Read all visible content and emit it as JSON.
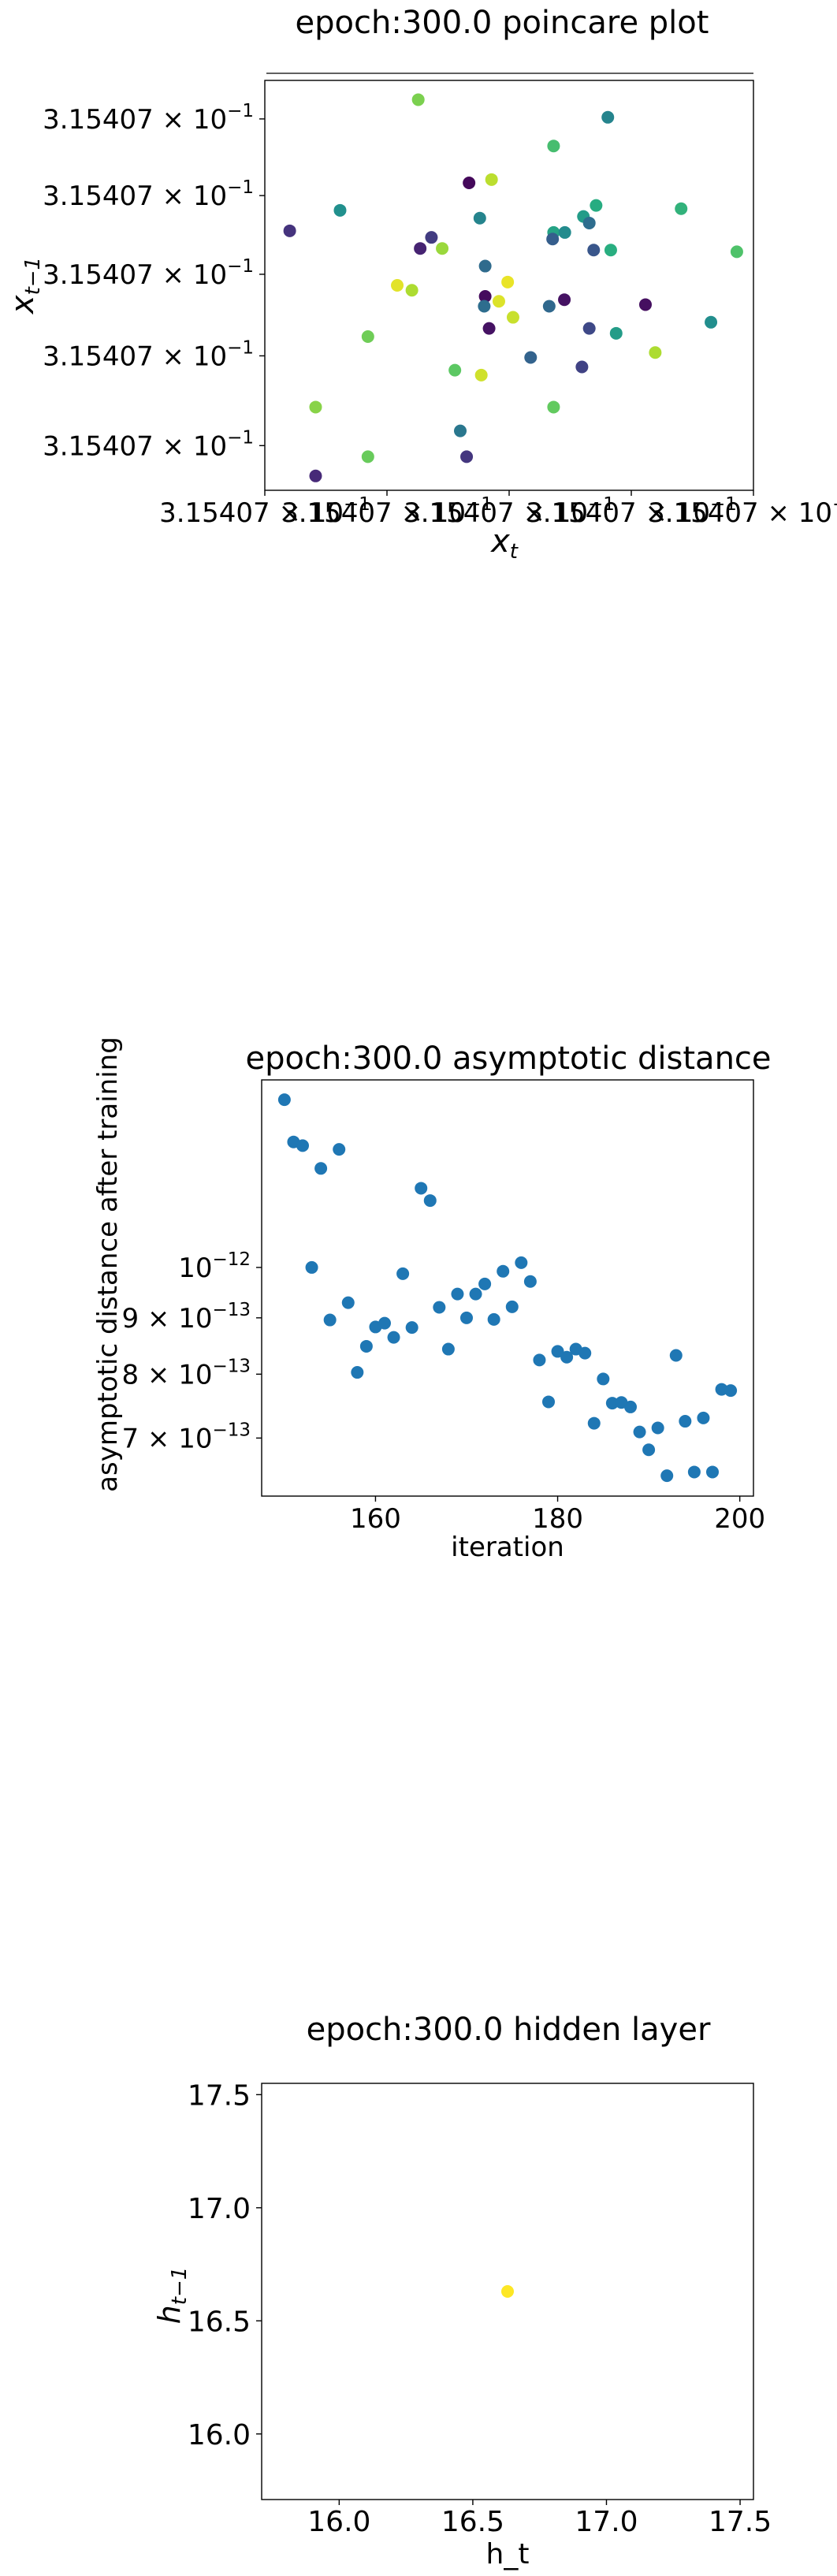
{
  "chart_data": [
    {
      "type": "scatter",
      "title": "epoch:300.0 poincare plot",
      "xlabel": "x",
      "xlabel_sub": "t",
      "ylabel": "x",
      "ylabel_sub": "t−1",
      "colormap": "viridis",
      "xlim": [
        0,
        1
      ],
      "ylim": [
        0,
        1
      ],
      "x_ticks": [
        {
          "label": "3.15407 × 10",
          "exp": "−1",
          "at": 0.0
        },
        {
          "label": "3.15407 × 10",
          "exp": "−1",
          "at": 0.25
        },
        {
          "label": "3.15407 × 10",
          "exp": "−1",
          "at": 0.5
        },
        {
          "label": "3.15407 × 10",
          "exp": "−1",
          "at": 0.75
        },
        {
          "label": "3.15407 × 10",
          "exp": "−1",
          "at": 1.0
        }
      ],
      "y_ticks": [
        {
          "label": "3.15407 × 10",
          "exp": "−1",
          "at": 0.109
        },
        {
          "label": "3.15407 × 10",
          "exp": "−1",
          "at": 0.328
        },
        {
          "label": "3.15407 × 10",
          "exp": "−1",
          "at": 0.527
        },
        {
          "label": "3.15407 × 10",
          "exp": "−1",
          "at": 0.719
        },
        {
          "label": "3.15407 × 10",
          "exp": "−1",
          "at": 0.906
        }
      ],
      "points": [
        {
          "x": 0.314,
          "y": 0.953,
          "c": 0.8
        },
        {
          "x": 0.702,
          "y": 0.91,
          "c": 0.45
        },
        {
          "x": 0.591,
          "y": 0.84,
          "c": 0.7
        },
        {
          "x": 0.464,
          "y": 0.758,
          "c": 0.9
        },
        {
          "x": 0.418,
          "y": 0.75,
          "c": 0.02
        },
        {
          "x": 0.852,
          "y": 0.687,
          "c": 0.65
        },
        {
          "x": 0.154,
          "y": 0.683,
          "c": 0.5
        },
        {
          "x": 0.678,
          "y": 0.695,
          "c": 0.62
        },
        {
          "x": 0.44,
          "y": 0.664,
          "c": 0.45
        },
        {
          "x": 0.652,
          "y": 0.668,
          "c": 0.55
        },
        {
          "x": 0.051,
          "y": 0.633,
          "c": 0.15
        },
        {
          "x": 0.591,
          "y": 0.629,
          "c": 0.58
        },
        {
          "x": 0.614,
          "y": 0.629,
          "c": 0.48
        },
        {
          "x": 0.664,
          "y": 0.652,
          "c": 0.36
        },
        {
          "x": 0.341,
          "y": 0.617,
          "c": 0.18
        },
        {
          "x": 0.318,
          "y": 0.59,
          "c": 0.1
        },
        {
          "x": 0.363,
          "y": 0.59,
          "c": 0.85
        },
        {
          "x": 0.589,
          "y": 0.613,
          "c": 0.3
        },
        {
          "x": 0.673,
          "y": 0.586,
          "c": 0.27
        },
        {
          "x": 0.708,
          "y": 0.586,
          "c": 0.63
        },
        {
          "x": 0.966,
          "y": 0.582,
          "c": 0.72
        },
        {
          "x": 0.451,
          "y": 0.547,
          "c": 0.35
        },
        {
          "x": 0.497,
          "y": 0.508,
          "c": 0.97
        },
        {
          "x": 0.271,
          "y": 0.5,
          "c": 0.96
        },
        {
          "x": 0.301,
          "y": 0.488,
          "c": 0.88
        },
        {
          "x": 0.451,
          "y": 0.473,
          "c": 0.03
        },
        {
          "x": 0.479,
          "y": 0.461,
          "c": 0.95
        },
        {
          "x": 0.613,
          "y": 0.465,
          "c": 0.05
        },
        {
          "x": 0.779,
          "y": 0.453,
          "c": 0.04
        },
        {
          "x": 0.449,
          "y": 0.449,
          "c": 0.36
        },
        {
          "x": 0.582,
          "y": 0.449,
          "c": 0.34
        },
        {
          "x": 0.508,
          "y": 0.422,
          "c": 0.92
        },
        {
          "x": 0.459,
          "y": 0.395,
          "c": 0.05
        },
        {
          "x": 0.664,
          "y": 0.395,
          "c": 0.22
        },
        {
          "x": 0.913,
          "y": 0.41,
          "c": 0.49
        },
        {
          "x": 0.211,
          "y": 0.375,
          "c": 0.78
        },
        {
          "x": 0.719,
          "y": 0.383,
          "c": 0.55
        },
        {
          "x": 0.799,
          "y": 0.336,
          "c": 0.88
        },
        {
          "x": 0.544,
          "y": 0.324,
          "c": 0.32
        },
        {
          "x": 0.649,
          "y": 0.301,
          "c": 0.2
        },
        {
          "x": 0.389,
          "y": 0.293,
          "c": 0.75
        },
        {
          "x": 0.443,
          "y": 0.281,
          "c": 0.93
        },
        {
          "x": 0.104,
          "y": 0.203,
          "c": 0.82
        },
        {
          "x": 0.591,
          "y": 0.203,
          "c": 0.76
        },
        {
          "x": 0.4,
          "y": 0.145,
          "c": 0.4
        },
        {
          "x": 0.211,
          "y": 0.082,
          "c": 0.77
        },
        {
          "x": 0.413,
          "y": 0.082,
          "c": 0.16
        },
        {
          "x": 0.104,
          "y": 0.035,
          "c": 0.12
        }
      ]
    },
    {
      "type": "scatter",
      "title": "epoch:300.0 asymptotic distance",
      "xlabel": "iteration",
      "ylabel": "asymptotic distance after training",
      "color": "#1f77b4",
      "log_y": true,
      "xlim": [
        147.5,
        201.5
      ],
      "ylim": [
        6.2e-13,
        1.48e-12
      ],
      "x_ticks": [
        160,
        180,
        200
      ],
      "y_ticks": [
        {
          "value": 1e-12,
          "mant": "",
          "exp": "−12"
        },
        {
          "value": 9e-13,
          "mant": "9 × ",
          "exp": "−13"
        },
        {
          "value": 8e-13,
          "mant": "8 × ",
          "exp": "−13"
        },
        {
          "value": 7e-13,
          "mant": "7 × ",
          "exp": "−13"
        }
      ],
      "x": [
        150,
        151,
        152,
        153,
        154,
        155,
        156,
        157,
        158,
        159,
        160,
        161,
        162,
        163,
        164,
        165,
        166,
        167,
        168,
        169,
        170,
        171,
        172,
        173,
        174,
        175,
        176,
        177,
        178,
        179,
        180,
        181,
        182,
        183,
        184,
        185,
        186,
        187,
        188,
        189,
        190,
        191,
        192,
        193,
        194,
        195,
        196,
        197,
        198,
        199
      ],
      "y": [
        1.42e-12,
        1.3e-12,
        1.29e-12,
        1e-12,
        1.23e-12,
        8.96e-13,
        1.28e-12,
        9.29e-13,
        8.03e-13,
        8.48e-13,
        8.83e-13,
        8.9e-13,
        8.64e-13,
        9.87e-13,
        8.82e-13,
        1.18e-12,
        1.15e-12,
        9.2e-13,
        8.43e-13,
        9.46e-13,
        9e-13,
        9.46e-13,
        9.66e-13,
        8.97e-13,
        9.92e-13,
        9.21e-13,
        1.01e-12,
        9.71e-13,
        8.24e-13,
        7.55e-13,
        8.39e-13,
        8.29e-13,
        8.43e-13,
        8.36e-13,
        7.22e-13,
        7.92e-13,
        7.53e-13,
        7.54e-13,
        7.47e-13,
        7.09e-13,
        6.83e-13,
        7.15e-13,
        6.47e-13,
        8.32e-13,
        7.25e-13,
        6.52e-13,
        7.3e-13,
        6.52e-13,
        7.75e-13,
        7.73e-13
      ]
    },
    {
      "type": "scatter",
      "title": "epoch:300.0 hidden layer",
      "xlabel": "h_t",
      "ylabel": "h",
      "ylabel_sub": "t−1",
      "color": "#fde725",
      "xlim": [
        15.71,
        17.55
      ],
      "ylim": [
        15.71,
        17.55
      ],
      "x_ticks": [
        "16.0",
        "16.5",
        "17.0",
        "17.5"
      ],
      "y_ticks": [
        "17.5",
        "17.0",
        "16.5",
        "16.0"
      ],
      "points": [
        {
          "x": 16.63,
          "y": 16.63
        }
      ]
    }
  ]
}
